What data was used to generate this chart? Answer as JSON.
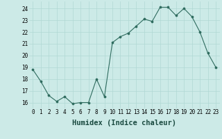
{
  "x": [
    0,
    1,
    2,
    3,
    4,
    5,
    6,
    7,
    8,
    9,
    10,
    11,
    12,
    13,
    14,
    15,
    16,
    17,
    18,
    19,
    20,
    21,
    22,
    23
  ],
  "y": [
    18.8,
    17.8,
    16.6,
    16.1,
    16.5,
    15.9,
    16.0,
    16.0,
    18.0,
    16.5,
    21.1,
    21.6,
    21.9,
    22.5,
    23.1,
    22.9,
    24.1,
    24.1,
    23.4,
    24.0,
    23.3,
    22.0,
    20.2,
    19.0
  ],
  "line_color": "#2e6b5e",
  "marker": "o",
  "marker_size": 2.2,
  "bg_color": "#cceae7",
  "grid_color": "#b0d8d4",
  "xlabel": "Humidex (Indice chaleur)",
  "ylim": [
    15.5,
    24.6
  ],
  "xlim": [
    -0.5,
    23.5
  ],
  "yticks": [
    16,
    17,
    18,
    19,
    20,
    21,
    22,
    23,
    24
  ],
  "xticks": [
    0,
    1,
    2,
    3,
    4,
    5,
    6,
    7,
    8,
    9,
    10,
    11,
    12,
    13,
    14,
    15,
    16,
    17,
    18,
    19,
    20,
    21,
    22,
    23
  ],
  "tick_fontsize": 5.5,
  "xlabel_fontsize": 7.5
}
